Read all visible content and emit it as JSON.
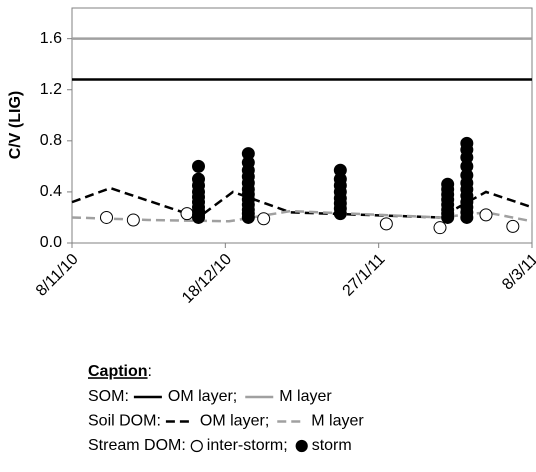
{
  "chart_data": {
    "type": "line",
    "y_label": "C/V (LIG)",
    "ylim": [
      0,
      1.84
    ],
    "yticks": [
      {
        "value": 0,
        "label": "0.0"
      },
      0.4,
      0.8,
      1.2,
      1.6
    ],
    "xlim": [
      "2010-11-08",
      "2011-03-08"
    ],
    "xticks": [
      {
        "value": "2010-11-08",
        "label": "8/11/10"
      },
      {
        "value": "2010-12-18",
        "label": "18/12/10"
      },
      {
        "value": "2011-01-27",
        "label": "27/1/11"
      },
      {
        "value": "2011-03-08",
        "label": "8/3/11"
      }
    ],
    "grid": false,
    "legend": {
      "title": "Caption",
      "title_suffix": ":",
      "separator": ";",
      "position": "bottom",
      "groups": [
        "SOM:",
        "Soil DOM:",
        "Stream DOM:"
      ]
    },
    "series": [
      {
        "name": "OM layer",
        "group": 0,
        "color": "#000000",
        "dash": "solid",
        "marker": "none",
        "x": [
          "2010-11-08",
          "2011-03-08"
        ],
        "values": [
          1.28,
          1.28
        ]
      },
      {
        "name": "M layer",
        "group": 0,
        "color": "#a0a0a0",
        "dash": "solid",
        "marker": "none",
        "x": [
          "2010-11-08",
          "2011-03-08"
        ],
        "values": [
          1.6,
          1.6
        ]
      },
      {
        "name": "OM layer",
        "group": 1,
        "color": "#000000",
        "dash": "dashed",
        "marker": "none",
        "x": [
          "2010-11-08",
          "2010-11-18",
          "2010-12-11",
          "2010-12-20",
          "2011-01-04",
          "2011-02-12",
          "2011-02-24",
          "2011-03-08"
        ],
        "values": [
          0.32,
          0.43,
          0.2,
          0.4,
          0.24,
          0.2,
          0.4,
          0.28
        ]
      },
      {
        "name": "M layer",
        "group": 1,
        "color": "#a0a0a0",
        "dash": "dashed",
        "marker": "none",
        "x": [
          "2010-11-08",
          "2010-11-28",
          "2010-12-19",
          "2011-01-04",
          "2011-02-12",
          "2011-02-24",
          "2011-03-08"
        ],
        "values": [
          0.2,
          0.18,
          0.17,
          0.25,
          0.2,
          0.24,
          0.17
        ]
      },
      {
        "name": "inter-storm",
        "group": 2,
        "color": "#000000",
        "dash": "none",
        "marker": "open-circle",
        "x": [
          "2010-11-17",
          "2010-11-24",
          "2010-12-08",
          "2010-12-28",
          "2011-01-29",
          "2011-02-12",
          "2011-02-24",
          "2011-03-03"
        ],
        "values": [
          0.2,
          0.18,
          0.23,
          0.19,
          0.15,
          0.12,
          0.22,
          0.13
        ]
      },
      {
        "name": "storm",
        "group": 2,
        "color": "#000000",
        "dash": "none",
        "marker": "filled-circle",
        "x": [
          "2010-12-11",
          "2010-12-11",
          "2010-12-11",
          "2010-12-11",
          "2010-12-11",
          "2010-12-11",
          "2010-12-11",
          "2010-12-11",
          "2010-12-11",
          "2010-12-11",
          "2010-12-24",
          "2010-12-24",
          "2010-12-24",
          "2010-12-24",
          "2010-12-24",
          "2010-12-24",
          "2010-12-24",
          "2010-12-24",
          "2010-12-24",
          "2010-12-24",
          "2010-12-24",
          "2010-12-24",
          "2011-01-17",
          "2011-01-17",
          "2011-01-17",
          "2011-01-17",
          "2011-01-17",
          "2011-01-17",
          "2011-01-17",
          "2011-01-17",
          "2011-02-14",
          "2011-02-14",
          "2011-02-14",
          "2011-02-14",
          "2011-02-14",
          "2011-02-14",
          "2011-02-14",
          "2011-02-14",
          "2011-02-19",
          "2011-02-19",
          "2011-02-19",
          "2011-02-19",
          "2011-02-19",
          "2011-02-19",
          "2011-02-19",
          "2011-02-19",
          "2011-02-19",
          "2011-02-19",
          "2011-02-19",
          "2011-02-19"
        ],
        "values": [
          0.2,
          0.22,
          0.25,
          0.28,
          0.32,
          0.36,
          0.4,
          0.45,
          0.5,
          0.6,
          0.2,
          0.23,
          0.26,
          0.3,
          0.34,
          0.38,
          0.42,
          0.47,
          0.52,
          0.57,
          0.63,
          0.7,
          0.23,
          0.27,
          0.31,
          0.35,
          0.4,
          0.45,
          0.5,
          0.57,
          0.2,
          0.23,
          0.26,
          0.3,
          0.34,
          0.38,
          0.42,
          0.46,
          0.2,
          0.24,
          0.28,
          0.32,
          0.37,
          0.42,
          0.47,
          0.53,
          0.6,
          0.67,
          0.73,
          0.78
        ]
      }
    ]
  }
}
